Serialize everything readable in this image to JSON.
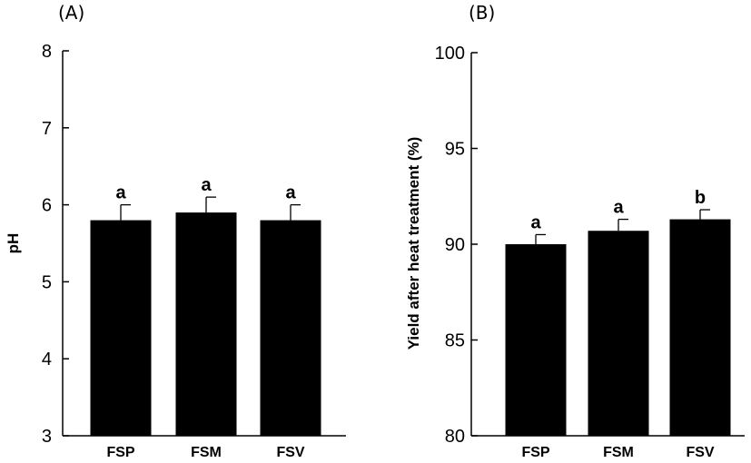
{
  "chart_data": [
    {
      "type": "bar",
      "panel_label": "(A)",
      "ylabel": "pH",
      "ylim": [
        3,
        8
      ],
      "yticks": [
        3,
        4,
        5,
        6,
        7,
        8
      ],
      "categories": [
        "FSP",
        "FSM",
        "FSV"
      ],
      "values": [
        5.8,
        5.9,
        5.8
      ],
      "errors": [
        0.2,
        0.2,
        0.2
      ],
      "significance": [
        "a",
        "a",
        "a"
      ],
      "bar_color": "#000000",
      "grid": false
    },
    {
      "type": "bar",
      "panel_label": "(B)",
      "ylabel": "Yield after heat treatment (%)",
      "ylim": [
        80,
        100
      ],
      "yticks": [
        80,
        85,
        90,
        95,
        100
      ],
      "categories": [
        "FSP",
        "FSM",
        "FSV"
      ],
      "values": [
        90.0,
        90.7,
        91.3
      ],
      "errors": [
        0.5,
        0.6,
        0.5
      ],
      "significance": [
        "a",
        "a",
        "b"
      ],
      "bar_color": "#000000",
      "grid": false
    }
  ]
}
